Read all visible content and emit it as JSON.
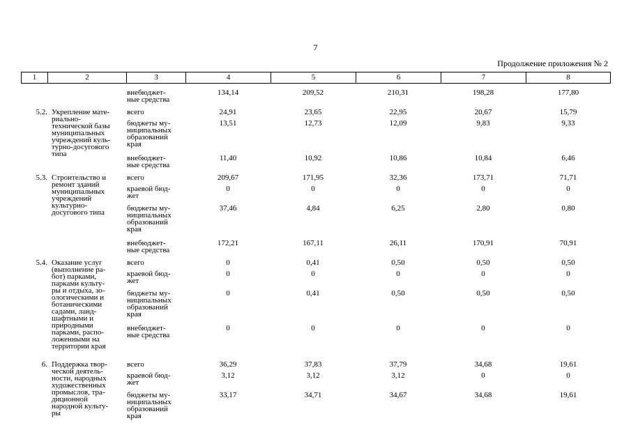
{
  "page_number": "7",
  "continuation": "Продолжение приложения № 2",
  "header": [
    "1",
    "2",
    "3",
    "4",
    "5",
    "6",
    "7",
    "8"
  ],
  "rows": [
    {
      "num": "",
      "name": "",
      "source": "внебюджет-\nные средства",
      "values": [
        "134,14",
        "209,52",
        "210,31",
        "198,28",
        "177,80"
      ]
    },
    {
      "num": "5.2.",
      "name": "Укрепление мате-\nриально-\nтехнической базы\nмуниципальных\nучреждений куль-\nтурно-досугового\nтипа",
      "source": "всего",
      "values": [
        "24,91",
        "23,65",
        "22,95",
        "20,67",
        "15,79"
      ]
    },
    {
      "num": "",
      "name": "",
      "source": "бюджеты му-\nниципальных\nобразований\nкрая",
      "values": [
        "13,51",
        "12,73",
        "12,09",
        "9,83",
        "9,33"
      ]
    },
    {
      "num": "",
      "name": "",
      "source": "внебюджет-\nные средства",
      "values": [
        "11,40",
        "10,92",
        "10,86",
        "10,84",
        "6,46"
      ]
    },
    {
      "num": "5.3.",
      "name": "Строительство и\nремонт зданий\nмуниципальных\nучреждений\nкультурно-\nдосугового типа",
      "source": "всего",
      "values": [
        "209,67",
        "171,95",
        "32,36",
        "173,71",
        "71,71"
      ]
    },
    {
      "num": "",
      "name": "",
      "source": "краевой бюд-\nжет",
      "values": [
        "0",
        "0",
        "0",
        "0",
        "0"
      ]
    },
    {
      "num": "",
      "name": "",
      "source": "бюджеты му-\nниципальных\nобразований\nкрая",
      "values": [
        "37,46",
        "4,84",
        "6,25",
        "2,80",
        "0,80"
      ]
    },
    {
      "num": "",
      "name": "",
      "source": "внебюджет-\nные средства",
      "values": [
        "172,21",
        "167,11",
        "26,11",
        "170,91",
        "70,91"
      ]
    },
    {
      "num": "5.4.",
      "name": "Оказание услуг\n(выполнение ра-\nбот) парками,\nпарками культу-\nры и отдыха, зо-\nологическими и\nботаническими\nсадами, ланд-\nшафтными и\nприродными\nпарками, распо-\nложенными на\nтерритории края",
      "source": "всего",
      "values": [
        "0",
        "0,41",
        "0,50",
        "0,50",
        "0,50"
      ]
    },
    {
      "num": "",
      "name": "",
      "source": "краевой бюд-\nжет",
      "values": [
        "0",
        "0",
        "0",
        "0",
        "0"
      ]
    },
    {
      "num": "",
      "name": "",
      "source": "бюджеты му-\nниципальных\nобразований\nкрая",
      "values": [
        "0",
        "0,41",
        "0,50",
        "0,50",
        "0,50"
      ]
    },
    {
      "num": "",
      "name": "",
      "source": "внебюджет-\nные средства",
      "values": [
        "0",
        "0",
        "0",
        "0",
        "0"
      ]
    },
    {
      "num": "6.",
      "name": "Поддержка твор-\nческой деятель-\nности, народных\nхудожественных\nпромыслов, тра-\nдиционной\nнародной культу-\nры",
      "source": "всего",
      "values": [
        "36,29",
        "37,83",
        "37,79",
        "34,68",
        "19,61"
      ]
    },
    {
      "num": "",
      "name": "",
      "source": "краевой бюд-\nжет",
      "values": [
        "3,12",
        "3,12",
        "3,12",
        "0",
        "0"
      ]
    },
    {
      "num": "",
      "name": "",
      "source": "бюджеты му-\nниципальных\nобразований\nкрая",
      "values": [
        "33,17",
        "34,71",
        "34,67",
        "34,68",
        "19,61"
      ]
    }
  ]
}
